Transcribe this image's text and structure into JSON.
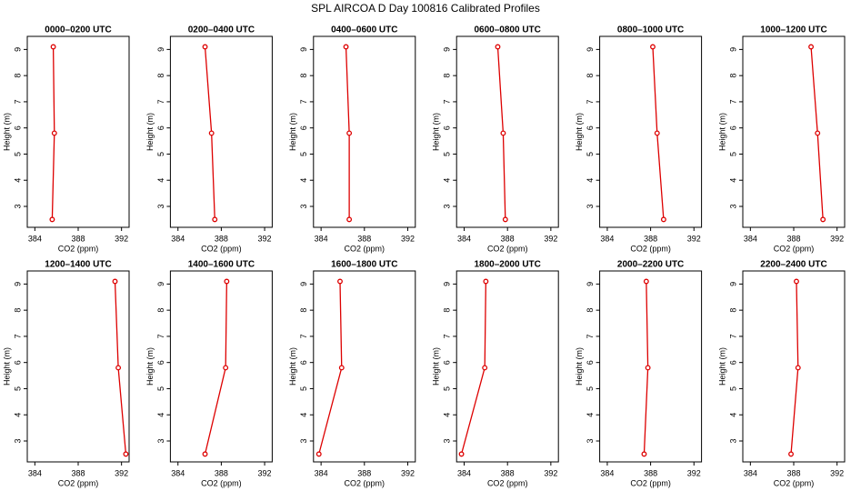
{
  "title": "SPL AIRCOA D  Day 100816  Calibrated Profiles",
  "chart_data": [
    {
      "type": "line",
      "title": "0000–0200 UTC",
      "xlabel": "CO2 (ppm)",
      "ylabel": "Height (m)",
      "x": [
        385.6,
        385.8,
        385.7
      ],
      "values": [
        2.5,
        5.8,
        9.1
      ],
      "color": "#dd0000",
      "xlim": [
        383.3,
        392.7
      ],
      "ylim": [
        2.2,
        9.5
      ],
      "xticks": [
        384,
        388,
        392
      ],
      "yticks": [
        3,
        4,
        5,
        6,
        7,
        8,
        9
      ]
    },
    {
      "type": "line",
      "title": "0200–0400 UTC",
      "xlabel": "CO2 (ppm)",
      "ylabel": "Height (m)",
      "x": [
        387.4,
        387.1,
        386.5
      ],
      "values": [
        2.5,
        5.8,
        9.1
      ],
      "color": "#dd0000",
      "xlim": [
        383.3,
        392.7
      ],
      "ylim": [
        2.2,
        9.5
      ],
      "xticks": [
        384,
        388,
        392
      ],
      "yticks": [
        3,
        4,
        5,
        6,
        7,
        8,
        9
      ]
    },
    {
      "type": "line",
      "title": "0400–0600 UTC",
      "xlabel": "CO2 (ppm)",
      "ylabel": "Height (m)",
      "x": [
        386.6,
        386.6,
        386.3
      ],
      "values": [
        2.5,
        5.8,
        9.1
      ],
      "color": "#dd0000",
      "xlim": [
        383.3,
        392.7
      ],
      "ylim": [
        2.2,
        9.5
      ],
      "xticks": [
        384,
        388,
        392
      ],
      "yticks": [
        3,
        4,
        5,
        6,
        7,
        8,
        9
      ]
    },
    {
      "type": "line",
      "title": "0600–0800 UTC",
      "xlabel": "CO2 (ppm)",
      "ylabel": "Height (m)",
      "x": [
        387.8,
        387.6,
        387.1
      ],
      "values": [
        2.5,
        5.8,
        9.1
      ],
      "color": "#dd0000",
      "xlim": [
        383.3,
        392.7
      ],
      "ylim": [
        2.2,
        9.5
      ],
      "xticks": [
        384,
        388,
        392
      ],
      "yticks": [
        3,
        4,
        5,
        6,
        7,
        8,
        9
      ]
    },
    {
      "type": "line",
      "title": "0800–1000 UTC",
      "xlabel": "CO2 (ppm)",
      "ylabel": "Height (m)",
      "x": [
        389.2,
        388.6,
        388.2
      ],
      "values": [
        2.5,
        5.8,
        9.1
      ],
      "color": "#dd0000",
      "xlim": [
        383.3,
        392.7
      ],
      "ylim": [
        2.2,
        9.5
      ],
      "xticks": [
        384,
        388,
        392
      ],
      "yticks": [
        3,
        4,
        5,
        6,
        7,
        8,
        9
      ]
    },
    {
      "type": "line",
      "title": "1000–1200 UTC",
      "xlabel": "CO2 (ppm)",
      "ylabel": "Height (m)",
      "x": [
        390.7,
        390.2,
        389.6
      ],
      "values": [
        2.5,
        5.8,
        9.1
      ],
      "color": "#dd0000",
      "xlim": [
        383.3,
        392.7
      ],
      "ylim": [
        2.2,
        9.5
      ],
      "xticks": [
        384,
        388,
        392
      ],
      "yticks": [
        3,
        4,
        5,
        6,
        7,
        8,
        9
      ]
    },
    {
      "type": "line",
      "title": "1200–1400 UTC",
      "xlabel": "CO2 (ppm)",
      "ylabel": "Height (m)",
      "x": [
        392.4,
        391.7,
        391.4
      ],
      "values": [
        2.5,
        5.8,
        9.1
      ],
      "color": "#dd0000",
      "xlim": [
        383.3,
        392.7
      ],
      "ylim": [
        2.2,
        9.5
      ],
      "xticks": [
        384,
        388,
        392
      ],
      "yticks": [
        3,
        4,
        5,
        6,
        7,
        8,
        9
      ]
    },
    {
      "type": "line",
      "title": "1400–1600 UTC",
      "xlabel": "CO2 (ppm)",
      "ylabel": "Height (m)",
      "x": [
        386.5,
        388.4,
        388.5
      ],
      "values": [
        2.5,
        5.8,
        9.1
      ],
      "color": "#dd0000",
      "xlim": [
        383.3,
        392.7
      ],
      "ylim": [
        2.2,
        9.5
      ],
      "xticks": [
        384,
        388,
        392
      ],
      "yticks": [
        3,
        4,
        5,
        6,
        7,
        8,
        9
      ]
    },
    {
      "type": "line",
      "title": "1600–1800 UTC",
      "xlabel": "CO2 (ppm)",
      "ylabel": "Height (m)",
      "x": [
        383.8,
        385.9,
        385.75
      ],
      "values": [
        2.5,
        5.8,
        9.1
      ],
      "color": "#dd0000",
      "xlim": [
        383.3,
        392.7
      ],
      "ylim": [
        2.2,
        9.5
      ],
      "xticks": [
        384,
        388,
        392
      ],
      "yticks": [
        3,
        4,
        5,
        6,
        7,
        8,
        9
      ]
    },
    {
      "type": "line",
      "title": "1800–2000 UTC",
      "xlabel": "CO2 (ppm)",
      "ylabel": "Height (m)",
      "x": [
        383.75,
        385.9,
        386.0
      ],
      "values": [
        2.5,
        5.8,
        9.1
      ],
      "color": "#dd0000",
      "xlim": [
        383.3,
        392.7
      ],
      "ylim": [
        2.2,
        9.5
      ],
      "xticks": [
        384,
        388,
        392
      ],
      "yticks": [
        3,
        4,
        5,
        6,
        7,
        8,
        9
      ]
    },
    {
      "type": "line",
      "title": "2000–2200 UTC",
      "xlabel": "CO2 (ppm)",
      "ylabel": "Height (m)",
      "x": [
        387.4,
        387.75,
        387.6
      ],
      "values": [
        2.5,
        5.8,
        9.1
      ],
      "color": "#dd0000",
      "xlim": [
        383.3,
        392.7
      ],
      "ylim": [
        2.2,
        9.5
      ],
      "xticks": [
        384,
        388,
        392
      ],
      "yticks": [
        3,
        4,
        5,
        6,
        7,
        8,
        9
      ]
    },
    {
      "type": "line",
      "title": "2200–2400 UTC",
      "xlabel": "CO2 (ppm)",
      "ylabel": "Height (m)",
      "x": [
        387.75,
        388.4,
        388.25
      ],
      "values": [
        2.5,
        5.8,
        9.1
      ],
      "color": "#dd0000",
      "xlim": [
        383.3,
        392.7
      ],
      "ylim": [
        2.2,
        9.5
      ],
      "xticks": [
        384,
        388,
        392
      ],
      "yticks": [
        3,
        4,
        5,
        6,
        7,
        8,
        9
      ]
    }
  ]
}
